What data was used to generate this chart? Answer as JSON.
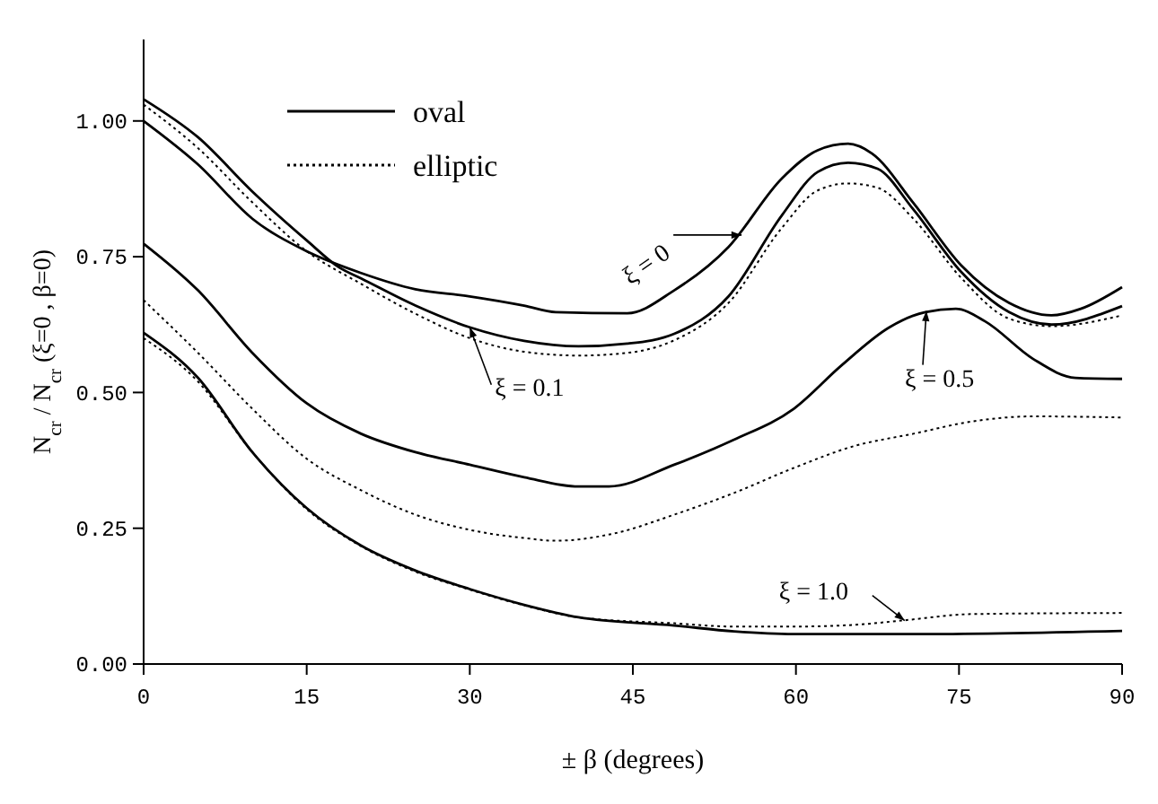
{
  "chart_data": {
    "type": "line",
    "xlabel": "± β  (degrees)",
    "ylabel": "N$_{cr}$ / N$_{cr}$ (ξ=0 , β=0)",
    "xlim": [
      0,
      90
    ],
    "xticks": [
      0,
      15,
      30,
      45,
      60,
      75,
      90
    ],
    "ylim": [
      0,
      1.15
    ],
    "yticks": [
      {
        "value": 0,
        "label": "0.00"
      },
      {
        "value": 0.25,
        "label": "0.25"
      },
      {
        "value": 0.5,
        "label": "0.50"
      },
      {
        "value": 0.75,
        "label": "0.75"
      },
      {
        "value": 1,
        "label": "1.00"
      }
    ],
    "legend": "top left",
    "grid": false,
    "series": [
      {
        "name": "oval",
        "color": "#000000",
        "line_style": "solid",
        "x": [
          0,
          5,
          10,
          15,
          20,
          25,
          30,
          35,
          37.9,
          44.5,
          48.8,
          53.8,
          58.7,
          62,
          64.8,
          67,
          70.8,
          75.2,
          79.6,
          83.5,
          86.2,
          90
        ],
        "values": [
          1.0,
          0.92,
          0.82,
          0.76,
          0.72,
          0.69,
          0.677,
          0.66,
          0.648,
          0.646,
          0.688,
          0.768,
          0.894,
          0.946,
          0.958,
          0.94,
          0.849,
          0.734,
          0.665,
          0.642,
          0.654,
          0.694
        ]
      },
      {
        "name": "elliptic",
        "color": "#000000",
        "line_style": "dotted",
        "x": [
          0,
          5,
          10,
          15,
          20,
          25,
          30,
          35,
          40,
          44.5,
          48.8,
          53.8,
          58.7,
          62,
          64.8,
          67.5,
          70.8,
          75.2,
          79.6,
          83.5,
          90
        ],
        "values": [
          1.03,
          0.95,
          0.85,
          0.76,
          0.7,
          0.645,
          0.6,
          0.575,
          0.568,
          0.573,
          0.596,
          0.665,
          0.803,
          0.872,
          0.885,
          0.877,
          0.82,
          0.711,
          0.636,
          0.622,
          0.642
        ]
      },
      {
        "color": "#000000",
        "line_style": "solid",
        "x": [
          0,
          5,
          10,
          15,
          18,
          20,
          25,
          30,
          35,
          40,
          44.5,
          48.8,
          53.8,
          58.7,
          62,
          64.8,
          67.5,
          70.8,
          75.2,
          79.6,
          83.5,
          90
        ],
        "values": [
          1.04,
          0.97,
          0.87,
          0.78,
          0.73,
          0.71,
          0.66,
          0.62,
          0.595,
          0.585,
          0.59,
          0.608,
          0.677,
          0.826,
          0.906,
          0.923,
          0.912,
          0.837,
          0.722,
          0.648,
          0.625,
          0.659
        ]
      },
      {
        "color": "#000000",
        "line_style": "solid",
        "x": [
          0,
          5,
          10,
          15,
          20,
          25,
          30,
          35,
          40,
          42.8,
          48.8,
          54.3,
          59.8,
          64.2,
          68.6,
          71.9,
          74.7,
          77.4,
          81.8,
          85.7,
          90
        ],
        "values": [
          0.774,
          0.688,
          0.573,
          0.48,
          0.424,
          0.39,
          0.367,
          0.344,
          0.327,
          0.327,
          0.367,
          0.413,
          0.47,
          0.55,
          0.62,
          0.648,
          0.654,
          0.631,
          0.562,
          0.527,
          0.525
        ]
      },
      {
        "color": "#000000",
        "line_style": "dotted",
        "x": [
          0,
          5,
          10,
          15,
          20,
          25,
          30,
          35,
          37.9,
          43.4,
          48.8,
          54.3,
          59.8,
          65.3,
          70.8,
          76.3,
          81.8,
          90
        ],
        "values": [
          0.67,
          0.573,
          0.47,
          0.378,
          0.32,
          0.275,
          0.247,
          0.232,
          0.227,
          0.241,
          0.275,
          0.315,
          0.361,
          0.401,
          0.424,
          0.447,
          0.456,
          0.454
        ]
      },
      {
        "color": "#000000",
        "line_style": "solid",
        "x": [
          0,
          5,
          10,
          15,
          20,
          25,
          30,
          35,
          40,
          48.8,
          54.3,
          59.8,
          70.8,
          90
        ],
        "values": [
          0.61,
          0.527,
          0.39,
          0.287,
          0.218,
          0.172,
          0.138,
          0.109,
          0.086,
          0.071,
          0.06,
          0.055,
          0.055,
          0.061
        ]
      },
      {
        "color": "#000000",
        "line_style": "dotted",
        "x": [
          0,
          5,
          10,
          15,
          20,
          25,
          30,
          35,
          40,
          48.8,
          54.3,
          59.8,
          65.3,
          69.7,
          76.3,
          90
        ],
        "values": [
          0.6,
          0.52,
          0.39,
          0.285,
          0.217,
          0.17,
          0.137,
          0.108,
          0.086,
          0.075,
          0.069,
          0.069,
          0.072,
          0.08,
          0.092,
          0.094
        ]
      }
    ],
    "annotations": [
      {
        "text": "ξ = 0",
        "x": 55,
        "y": 0.79
      },
      {
        "text": "ξ = 0.1",
        "x": 30,
        "y": 0.62
      },
      {
        "text": "ξ = 0.5",
        "x": 72,
        "y": 0.65
      },
      {
        "text": "ξ = 1.0",
        "x": 70,
        "y": 0.08
      }
    ]
  }
}
